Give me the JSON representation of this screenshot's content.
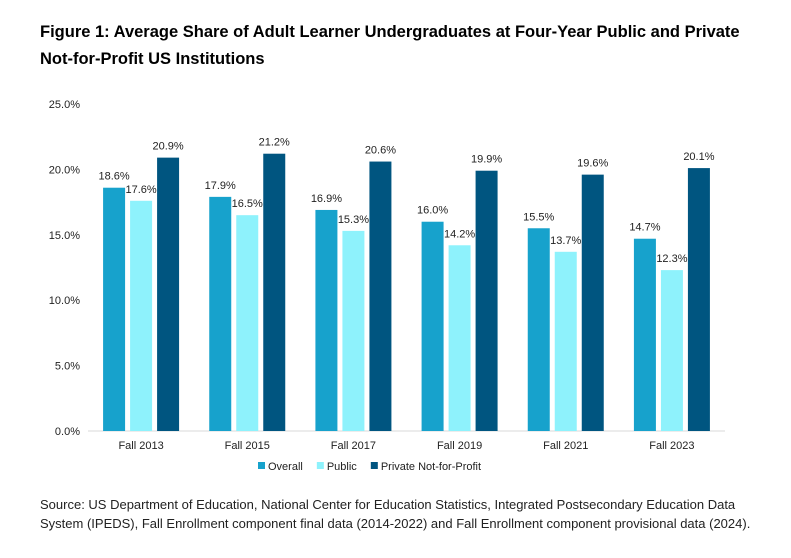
{
  "chart_data": {
    "type": "bar",
    "title": "Figure 1: Average Share of Adult Learner Undergraduates at Four-Year Public and Private Not-for-Profit US Institutions",
    "xlabel": "",
    "ylabel": "",
    "categories": [
      "Fall 2013",
      "Fall 2015",
      "Fall 2017",
      "Fall 2019",
      "Fall 2021",
      "Fall 2023"
    ],
    "series": [
      {
        "name": "Overall",
        "color": "#17a2cc",
        "values": [
          18.6,
          17.9,
          16.9,
          16.0,
          15.5,
          14.7
        ]
      },
      {
        "name": "Public",
        "color": "#8ef2fc",
        "values": [
          17.6,
          16.5,
          15.3,
          14.2,
          13.7,
          12.3
        ]
      },
      {
        "name": "Private Not-for-Profit",
        "color": "#005580",
        "values": [
          20.9,
          21.2,
          20.6,
          19.9,
          19.6,
          20.1
        ]
      }
    ],
    "ylim": [
      0,
      25
    ],
    "yticks": [
      "0.0%",
      "5.0%",
      "10.0%",
      "15.0%",
      "20.0%",
      "25.0%"
    ],
    "grid": false,
    "legend": "bottom",
    "data_labels": true
  },
  "source": "Source: US Department of Education, National Center for Education Statistics, Integrated Postsecondary Education Data System (IPEDS), Fall Enrollment component final data (2014-2022) and Fall Enrollment component provisional data (2024)."
}
